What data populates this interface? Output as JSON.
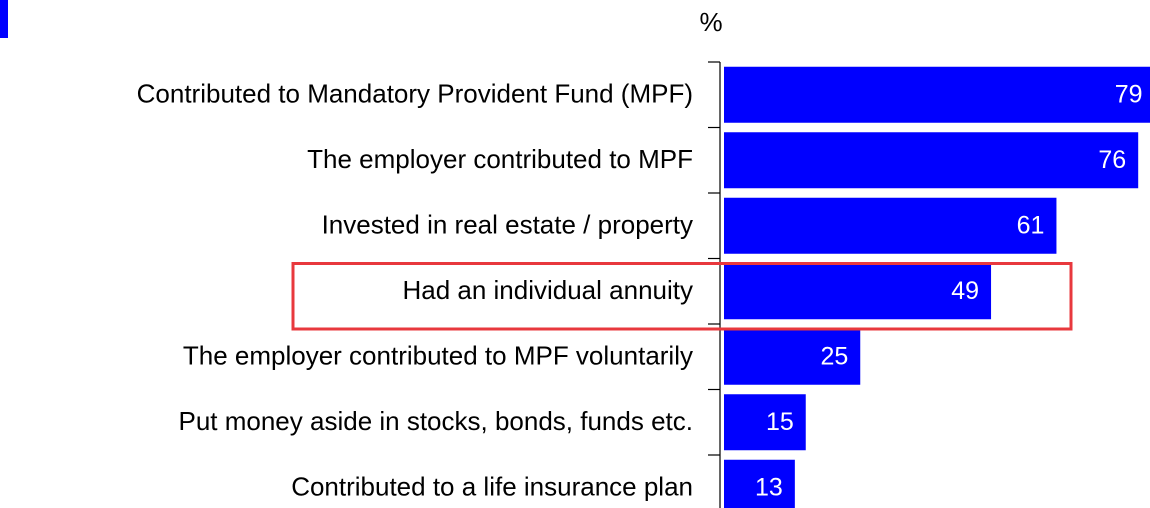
{
  "chart_data": {
    "type": "bar",
    "orientation": "horizontal",
    "unit": "%",
    "categories": [
      "Contributed to Mandatory Provident Fund (MPF)",
      "The employer contributed to MPF",
      "Invested in real estate / property",
      "Had an individual annuity",
      "The employer contributed to MPF voluntarily",
      "Put money aside in stocks, bonds, funds etc.",
      "Contributed to a life insurance plan"
    ],
    "values": [
      79,
      76,
      61,
      49,
      25,
      15,
      13
    ],
    "color": "#0000ff",
    "highlight": 3,
    "highlight_color": "#e8383d"
  }
}
